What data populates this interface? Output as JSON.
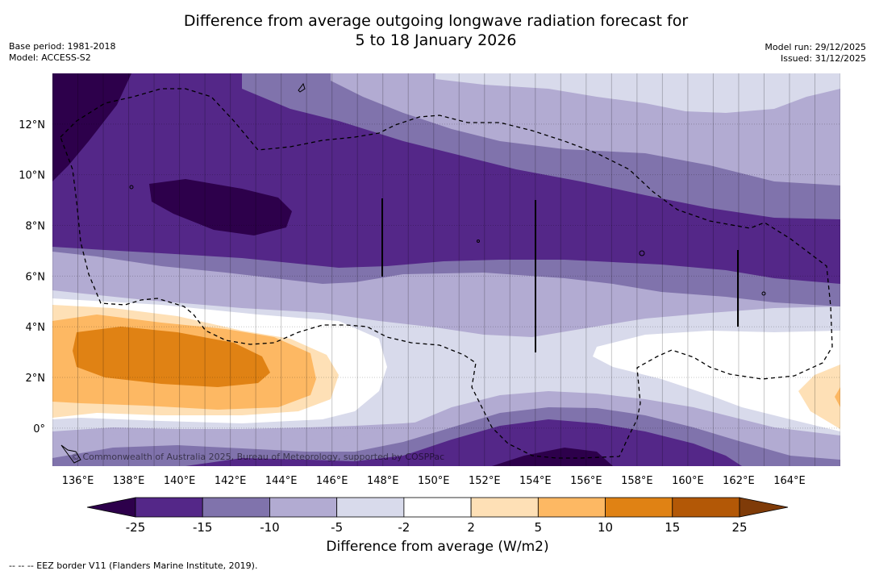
{
  "title_line1": "Difference from average outgoing longwave radiation forecast for",
  "title_line2": "5 to 18 January 2026",
  "meta_left": {
    "base_period": "Base period: 1981-2018",
    "model": "Model: ACCESS-S2"
  },
  "meta_right": {
    "model_run": "Model run: 29/12/2025",
    "issued": "Issued: 31/12/2025"
  },
  "copyright": "© Commonwealth of Australia 2025, Bureau of Meteorology, supported by COSPPac",
  "footer": "--  --  -- EEZ border V11 (Flanders Marine Institute, 2019).",
  "chart_data": {
    "type": "heatmap",
    "title": "Difference from average outgoing longwave radiation forecast for 5 to 18 January 2026",
    "x_range_deg_e": [
      135,
      166
    ],
    "y_range_deg": [
      -1.5,
      14
    ],
    "x_tick_labels": [
      "136°E",
      "138°E",
      "140°E",
      "142°E",
      "144°E",
      "146°E",
      "148°E",
      "150°E",
      "152°E",
      "154°E",
      "156°E",
      "158°E",
      "160°E",
      "162°E",
      "164°E"
    ],
    "x_tick_values": [
      136,
      138,
      140,
      142,
      144,
      146,
      148,
      150,
      152,
      154,
      156,
      158,
      160,
      162,
      164
    ],
    "y_tick_labels": [
      "0°",
      "2°N",
      "4°N",
      "6°N",
      "8°N",
      "10°N",
      "12°N"
    ],
    "y_tick_values": [
      0,
      2,
      4,
      6,
      8,
      10,
      12
    ],
    "colorbar": {
      "label": "Difference from average (W/m2)",
      "tick_labels": [
        "-25",
        "-15",
        "-10",
        "-5",
        "-2",
        "2",
        "5",
        "10",
        "15",
        "25"
      ],
      "bounds": [
        -25,
        -15,
        -10,
        -5,
        -2,
        2,
        5,
        10,
        15,
        25
      ],
      "colors": [
        "#2d004b",
        "#542788",
        "#8073ac",
        "#b2abd2",
        "#d8daeb",
        "#ffffff",
        "#fee0b6",
        "#fdb863",
        "#e08214",
        "#b35806",
        "#7f3b08"
      ]
    }
  }
}
